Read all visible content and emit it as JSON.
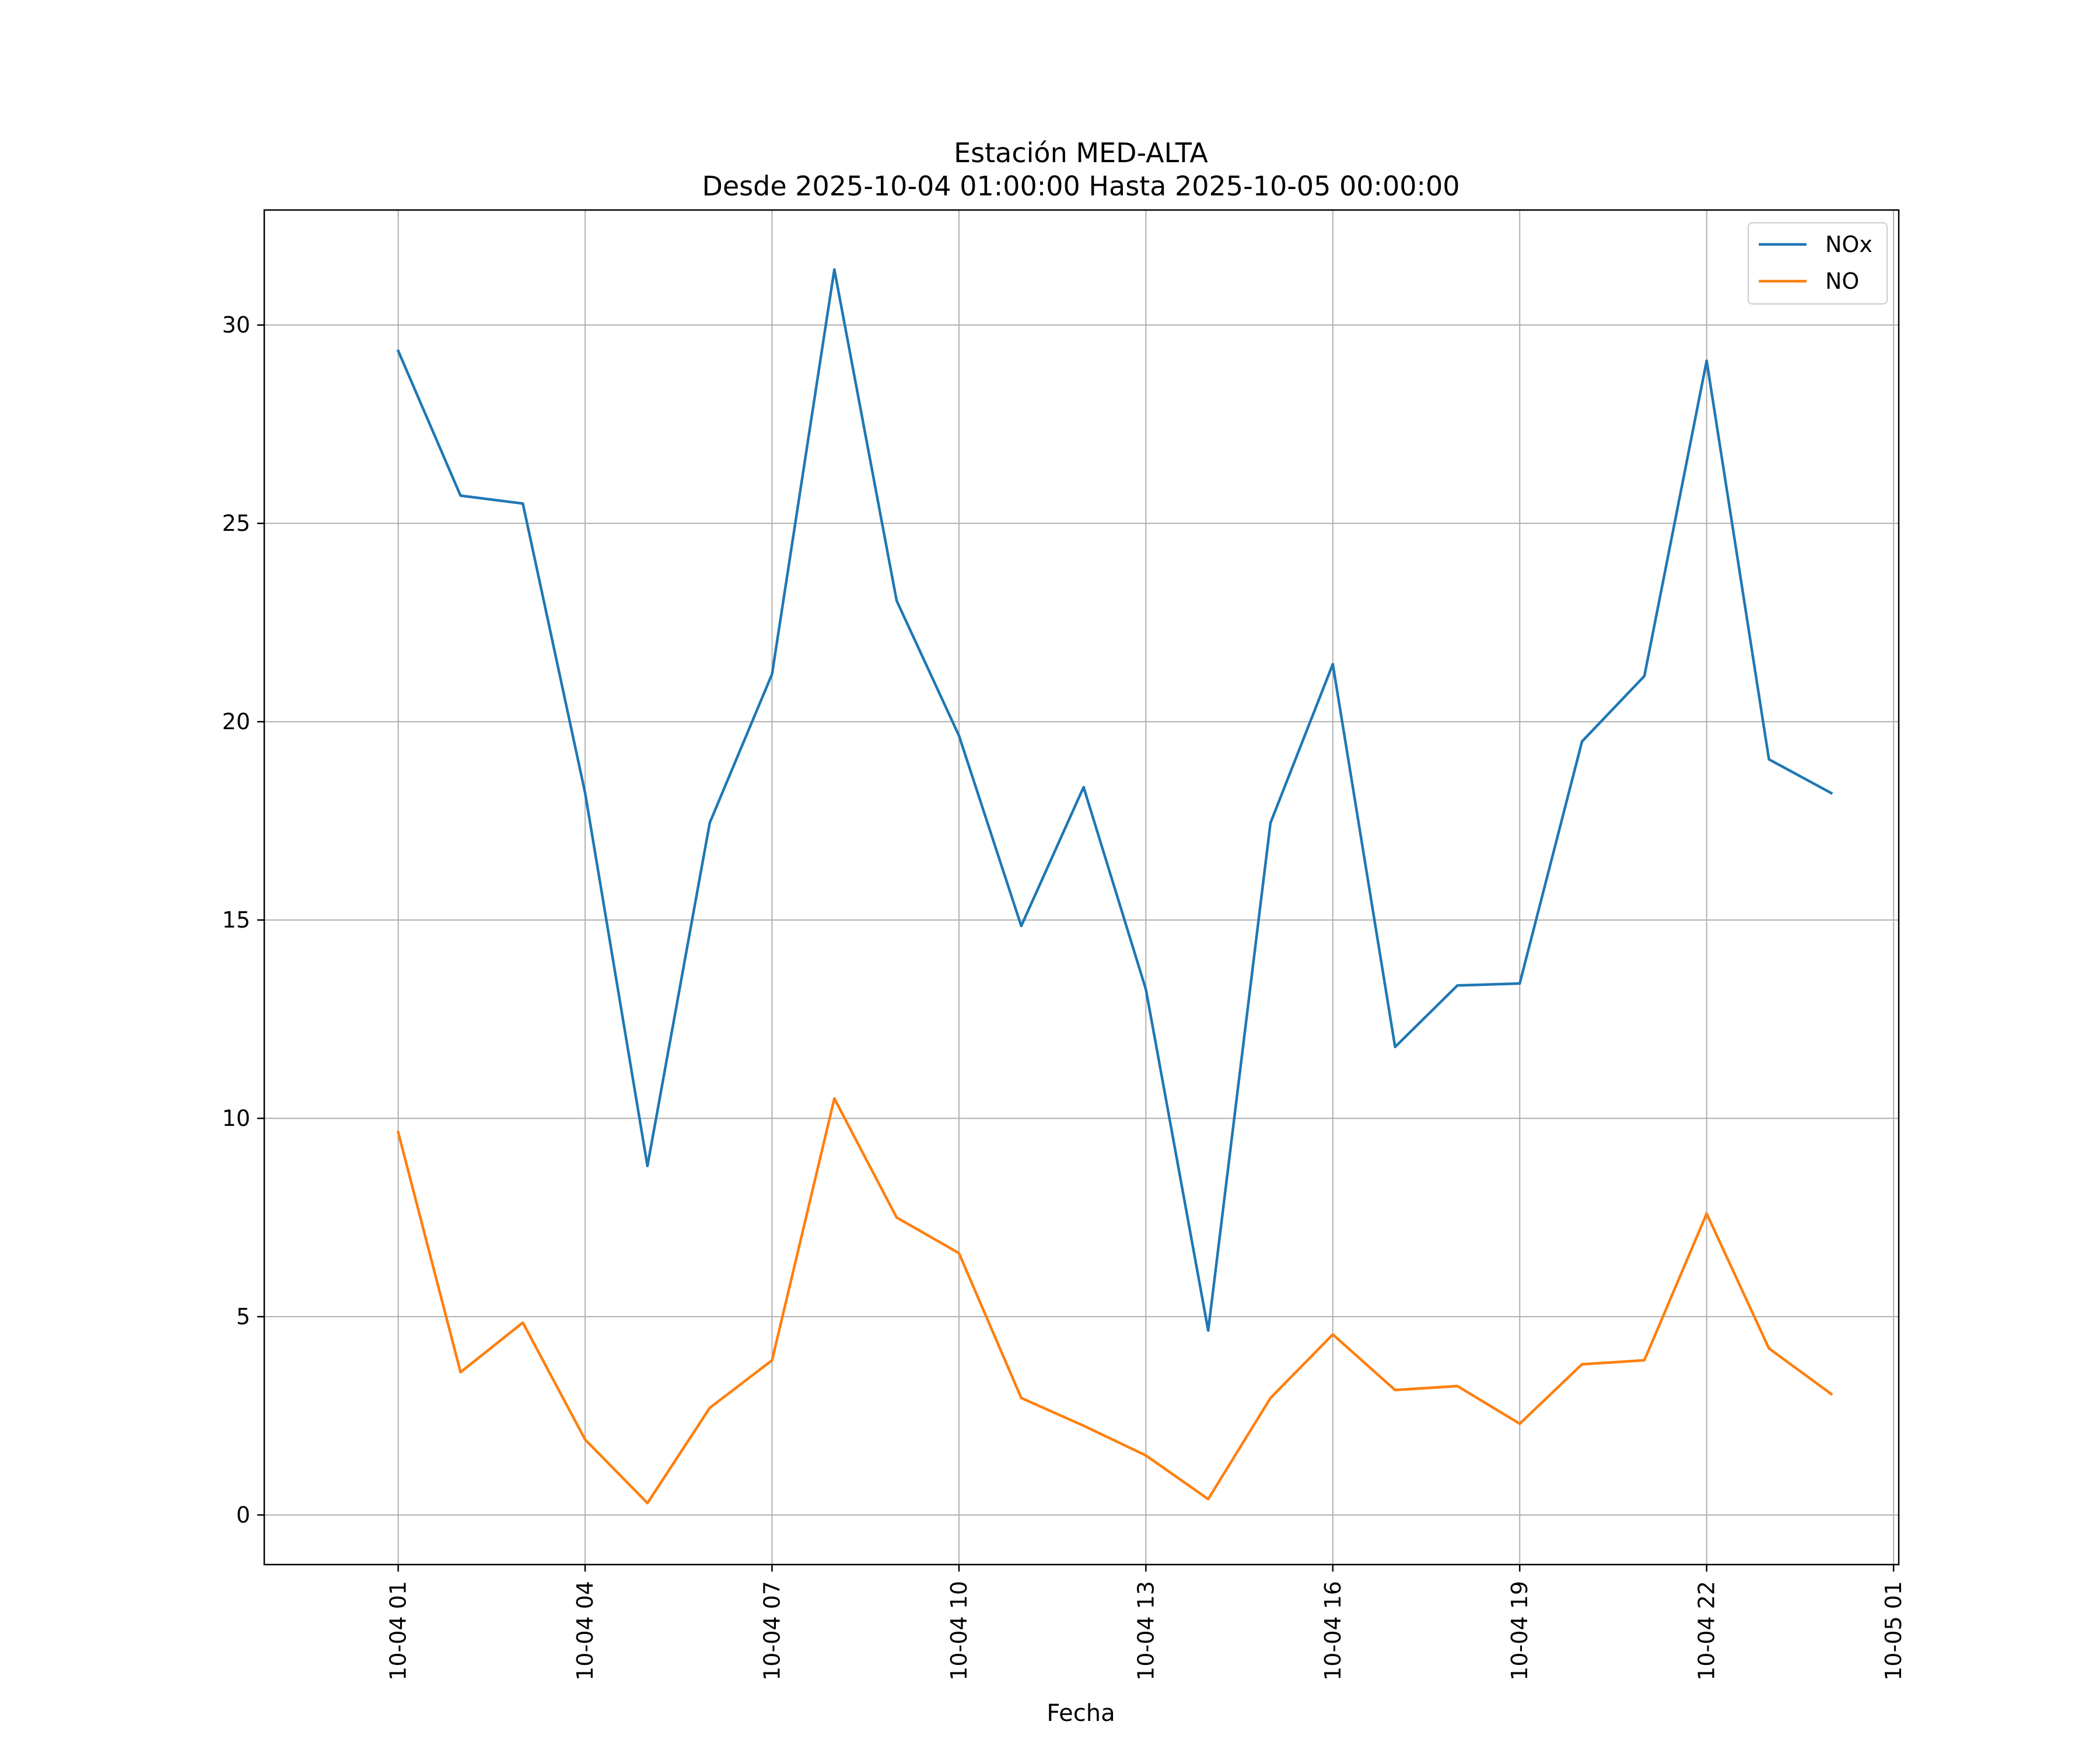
{
  "chart_data": {
    "type": "line",
    "title": "Estación MED-ALTA",
    "subtitle": "Desde 2025-10-04 01:00:00 Hasta 2025-10-05 00:00:00",
    "xlabel": "Fecha",
    "ylabel": "",
    "x": [
      "2025-10-04 01:00",
      "2025-10-04 02:00",
      "2025-10-04 03:00",
      "2025-10-04 04:00",
      "2025-10-04 05:00",
      "2025-10-04 06:00",
      "2025-10-04 07:00",
      "2025-10-04 08:00",
      "2025-10-04 09:00",
      "2025-10-04 10:00",
      "2025-10-04 11:00",
      "2025-10-04 12:00",
      "2025-10-04 13:00",
      "2025-10-04 14:00",
      "2025-10-04 15:00",
      "2025-10-04 16:00",
      "2025-10-04 17:00",
      "2025-10-04 18:00",
      "2025-10-04 19:00",
      "2025-10-04 20:00",
      "2025-10-04 21:00",
      "2025-10-04 22:00",
      "2025-10-04 23:00",
      "2025-10-05 00:00"
    ],
    "xlim": [
      "2025-10-03 22:51",
      "2025-10-05 01:05"
    ],
    "ylim": [
      -1.25,
      32.9
    ],
    "x_ticks": [
      "2025-10-04 01:00",
      "2025-10-04 04:00",
      "2025-10-04 07:00",
      "2025-10-04 10:00",
      "2025-10-04 13:00",
      "2025-10-04 16:00",
      "2025-10-04 19:00",
      "2025-10-04 22:00",
      "2025-10-05 01:00"
    ],
    "x_tick_labels": [
      "10-04 01",
      "10-04 04",
      "10-04 07",
      "10-04 10",
      "10-04 13",
      "10-04 16",
      "10-04 19",
      "10-04 22",
      "10-05 01"
    ],
    "y_ticks": [
      0,
      5,
      10,
      15,
      20,
      25,
      30
    ],
    "y_tick_labels": [
      "0",
      "5",
      "10",
      "15",
      "20",
      "25",
      "30"
    ],
    "grid": true,
    "legend_position": "top-right",
    "series": [
      {
        "name": "NOx",
        "color": "#1f77b4",
        "values": [
          29.35,
          25.7,
          25.5,
          18.2,
          8.8,
          17.45,
          21.2,
          31.4,
          23.05,
          19.65,
          14.85,
          18.35,
          13.25,
          4.65,
          17.45,
          21.45,
          11.8,
          13.35,
          13.4,
          19.5,
          21.15,
          29.1,
          19.05,
          18.2
        ]
      },
      {
        "name": "NO",
        "color": "#ff7f0e",
        "values": [
          9.65,
          3.6,
          4.85,
          1.9,
          0.3,
          2.7,
          3.9,
          10.5,
          7.5,
          6.6,
          2.95,
          2.25,
          1.5,
          0.4,
          2.95,
          4.55,
          3.15,
          3.25,
          2.3,
          3.8,
          3.9,
          7.6,
          4.2,
          3.05
        ]
      }
    ]
  }
}
